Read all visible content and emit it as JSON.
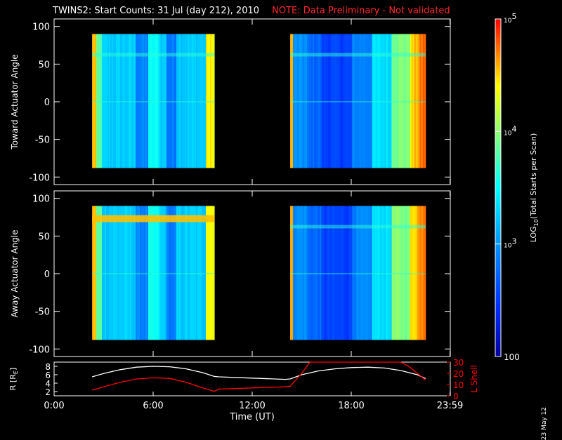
{
  "title": {
    "main": "TWINS2: Start Counts: 31 Jul (day 212), 2010",
    "note": "NOTE: Data Preliminary - Not validated"
  },
  "datestamp": "23 May 12",
  "colors": {
    "note": "#ff2a2a",
    "background": "#000000",
    "axes": "#ffffff",
    "r_line": "#ffffff",
    "lshell_line": "#ff0000"
  },
  "chart_data": [
    {
      "type": "heatmap",
      "panel": "top",
      "ylabel": "Toward Actuator Angle",
      "ylim": [
        -110,
        110
      ],
      "yticks": [
        100,
        50,
        0,
        -50,
        -100
      ],
      "xlim": [
        0,
        24
      ],
      "coverage_intervals_hours": [
        [
          2.3,
          9.7
        ],
        [
          14.3,
          22.5
        ]
      ],
      "angle_range_deg": [
        -88,
        90
      ],
      "colorscale": "rainbow (blue=low, red=high)"
    },
    {
      "type": "heatmap",
      "panel": "middle",
      "ylabel": "Away Actuator Angle",
      "ylim": [
        -110,
        110
      ],
      "yticks": [
        100,
        50,
        0,
        -50,
        -100
      ],
      "xlim": [
        0,
        24
      ],
      "coverage_intervals_hours": [
        [
          2.3,
          9.7
        ],
        [
          14.3,
          22.5
        ]
      ],
      "angle_range_deg": [
        -88,
        90
      ],
      "colorscale": "rainbow (blue=low, red=high)"
    },
    {
      "type": "line",
      "panel": "bottom",
      "xlabel": "Time (UT)",
      "xticks": [
        "0:00",
        "6:00",
        "12:00",
        "18:00",
        "23:59"
      ],
      "xlim": [
        0,
        24
      ],
      "left_axis": {
        "label": "R [R",
        "label_sub": "E",
        "label_end": "]",
        "ylim": [
          1,
          9
        ],
        "yticks": [
          2,
          4,
          6,
          8
        ]
      },
      "right_axis": {
        "label": "L Shell",
        "ylim": [
          0,
          30
        ],
        "yticks": [
          0,
          10,
          20,
          30
        ]
      },
      "series": [
        {
          "axis": "left",
          "color": "#ffffff",
          "x": [
            2.3,
            3,
            4,
            5,
            6,
            7,
            8,
            9,
            9.7,
            10,
            12,
            14,
            14.3,
            15,
            16,
            17,
            18,
            19,
            20,
            21,
            22,
            22.5
          ],
          "y": [
            5.5,
            6.3,
            7.2,
            7.8,
            8.0,
            7.9,
            7.4,
            6.5,
            5.6,
            5.5,
            5.2,
            4.9,
            5.0,
            6.0,
            6.9,
            7.4,
            7.7,
            7.8,
            7.6,
            7.0,
            6.0,
            5.1
          ]
        },
        {
          "axis": "right",
          "color": "#ff0000",
          "x": [
            2.3,
            3,
            4,
            5,
            6,
            7,
            8,
            9,
            9.7,
            10,
            12,
            14,
            14.3,
            15,
            15.5,
            21,
            21.5,
            22,
            22.5
          ],
          "y": [
            5,
            8,
            12,
            15,
            16,
            15.5,
            12,
            7,
            4,
            6,
            7,
            8,
            8.5,
            20,
            30,
            30,
            26,
            20,
            14
          ]
        }
      ]
    },
    {
      "type": "colorbar",
      "label_prefix": "LOG",
      "label_sub": "10",
      "label_suffix": "(Total Starts per Scan)",
      "ticks": [
        {
          "base": "10",
          "exp": "5",
          "value": 100000
        },
        {
          "base": "10",
          "exp": "4",
          "value": 10000
        },
        {
          "base": "10",
          "exp": "3",
          "value": 1000
        },
        {
          "base": "100",
          "exp": "",
          "value": 100
        }
      ],
      "range": [
        100,
        100000
      ],
      "scale": "log"
    }
  ]
}
